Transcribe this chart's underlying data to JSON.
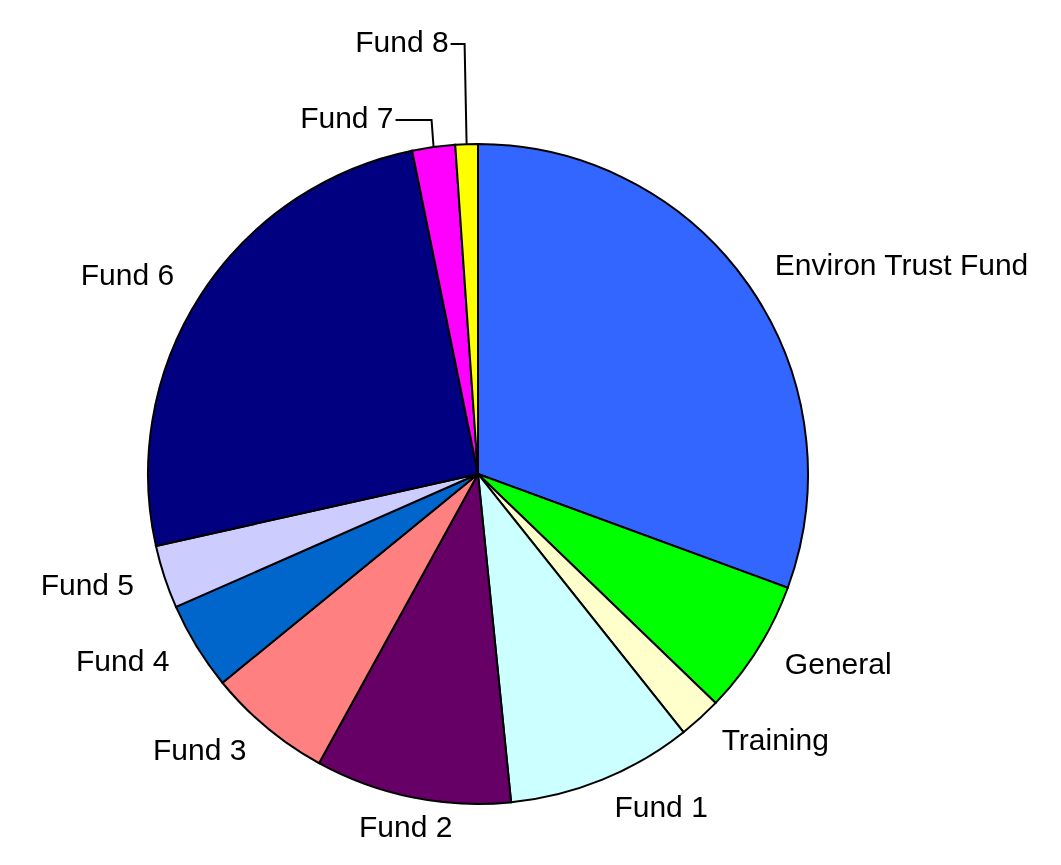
{
  "chart_data": {
    "type": "pie",
    "categories": [
      "Environ Trust Fund",
      "General",
      "Training",
      "Fund 1",
      "Fund 2",
      "Fund 3",
      "Fund 4",
      "Fund 5",
      "Fund 6",
      "Fund 7",
      "Fund 8"
    ],
    "values": [
      30.6,
      6.6,
      2.1,
      9.1,
      9.6,
      6.1,
      4.3,
      3.1,
      25.3,
      2.1,
      1.1
    ],
    "colors": [
      "#3366ff",
      "#00ff00",
      "#ffffcc",
      "#ccffff",
      "#660066",
      "#ff8080",
      "#0066cc",
      "#ccccff",
      "#000080",
      "#ff00ff",
      "#ffff00"
    ]
  }
}
